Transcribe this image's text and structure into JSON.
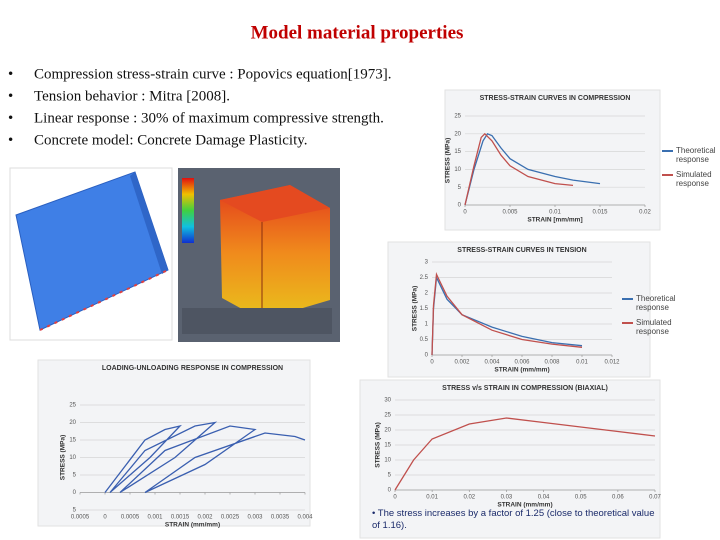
{
  "title": "Model material properties",
  "bullets": [
    "Compression stress-strain curve : Popovics equation[1973].",
    "Tension behavior : Mitra [2008].",
    "Linear response : 30% of maximum compressive strength.",
    "Concrete model: Concrete Damage Plasticity."
  ],
  "chart_data": [
    {
      "type": "line",
      "title": "STRESS-STRAIN CURVES IN COMPRESSION",
      "x_label": "STRAIN [mm/mm]",
      "y_label": "STRESS (MPa)",
      "xlim": [
        0,
        0.02
      ],
      "xticks": [
        0,
        0.005,
        0.01,
        0.015,
        0.02
      ],
      "ylim": [
        0,
        25
      ],
      "yticks": [
        0,
        5,
        10,
        15,
        20,
        25
      ],
      "grid": true,
      "series": [
        {
          "name": "Theoretical response",
          "color": "#3a6fb0",
          "x": [
            0,
            0.001,
            0.002,
            0.0025,
            0.003,
            0.004,
            0.005,
            0.007,
            0.01,
            0.012,
            0.015
          ],
          "values": [
            0,
            10,
            18,
            20,
            19.5,
            16,
            13,
            10,
            8,
            7,
            6
          ]
        },
        {
          "name": "Simulated response",
          "color": "#c0504d",
          "x": [
            0,
            0.001,
            0.0018,
            0.0022,
            0.003,
            0.004,
            0.005,
            0.007,
            0.01,
            0.012
          ],
          "values": [
            0,
            11,
            19,
            20,
            18,
            14,
            11,
            8,
            6,
            5.5
          ]
        }
      ]
    },
    {
      "type": "line",
      "title": "STRESS-STRAIN CURVES IN TENSION",
      "x_label": "STRAIN (mm/mm)",
      "y_label": "STRESS (MPa)",
      "xlim": [
        0,
        0.012
      ],
      "xticks": [
        0,
        0.002,
        0.004,
        0.006,
        0.008,
        0.01,
        0.012
      ],
      "ylim": [
        0,
        3
      ],
      "yticks": [
        0,
        0.5,
        1,
        1.5,
        2,
        2.5,
        3
      ],
      "grid": true,
      "series": [
        {
          "name": "Theoretical response",
          "color": "#3a6fb0",
          "x": [
            0,
            0.0001,
            0.0003,
            0.0006,
            0.001,
            0.002,
            0.004,
            0.006,
            0.008,
            0.01
          ],
          "values": [
            0,
            1.5,
            2.5,
            2.2,
            1.8,
            1.3,
            0.9,
            0.6,
            0.4,
            0.3
          ]
        },
        {
          "name": "Simulated response",
          "color": "#c0504d",
          "x": [
            0,
            0.0001,
            0.0003,
            0.0005,
            0.001,
            0.002,
            0.004,
            0.006,
            0.008,
            0.01
          ],
          "values": [
            0,
            1.6,
            2.6,
            2.4,
            1.9,
            1.3,
            0.8,
            0.5,
            0.35,
            0.25
          ]
        }
      ]
    },
    {
      "type": "line",
      "title": "LOADING-UNLOADING RESPONSE IN COMPRESSION",
      "x_label": "STRAIN (mm/mm)",
      "y_label": "STRESS (MPa)",
      "xlim": [
        -0.0005,
        0.004
      ],
      "xticks": [
        {
          "value": -0.0005,
          "label": "0.0005"
        },
        0,
        0.0005,
        0.001,
        0.0015,
        0.002,
        0.0025,
        0.003,
        0.0035,
        0.004
      ],
      "ylim": [
        -5,
        25
      ],
      "yticks": [
        {
          "value": -5,
          "label": "5"
        },
        0,
        5,
        10,
        15,
        20,
        25
      ],
      "grid": true,
      "series": [
        {
          "color": "#3a5fb0",
          "x": [
            0,
            0.0008,
            0.0012,
            0.0015,
            0.0009,
            0.0001,
            0.0008,
            0.0018,
            0.0022,
            0.0014,
            0.0003,
            0.0012,
            0.0025,
            0.003,
            0.002,
            0.0008,
            0.0018,
            0.0032,
            0.0038,
            0.004
          ],
          "values": [
            0,
            15,
            18,
            19,
            10,
            0,
            12,
            19,
            20,
            10,
            0,
            12,
            19,
            18,
            8,
            0,
            10,
            17,
            16,
            15
          ]
        }
      ]
    },
    {
      "type": "line",
      "title": "STRESS v/s STRAIN IN COMPRESSION (BIAXIAL)",
      "x_label": "STRAIN (mm/mm)",
      "y_label": "STRESS (MPa)",
      "xlim": [
        0,
        0.07
      ],
      "xticks": [
        0,
        0.01,
        0.02,
        0.03,
        0.04,
        0.05,
        0.06,
        0.07
      ],
      "ylim": [
        0,
        30
      ],
      "yticks": [
        0,
        5,
        10,
        15,
        20,
        25,
        30
      ],
      "grid": true,
      "note": "The stress increases by a factor of 1.25 (close to theoretical value of 1.16).",
      "series": [
        {
          "color": "#c0504d",
          "x": [
            0,
            0.005,
            0.01,
            0.02,
            0.03,
            0.04,
            0.05,
            0.06,
            0.07
          ],
          "values": [
            0,
            10,
            17,
            22,
            24,
            22.5,
            21,
            19.5,
            18
          ]
        }
      ]
    }
  ]
}
